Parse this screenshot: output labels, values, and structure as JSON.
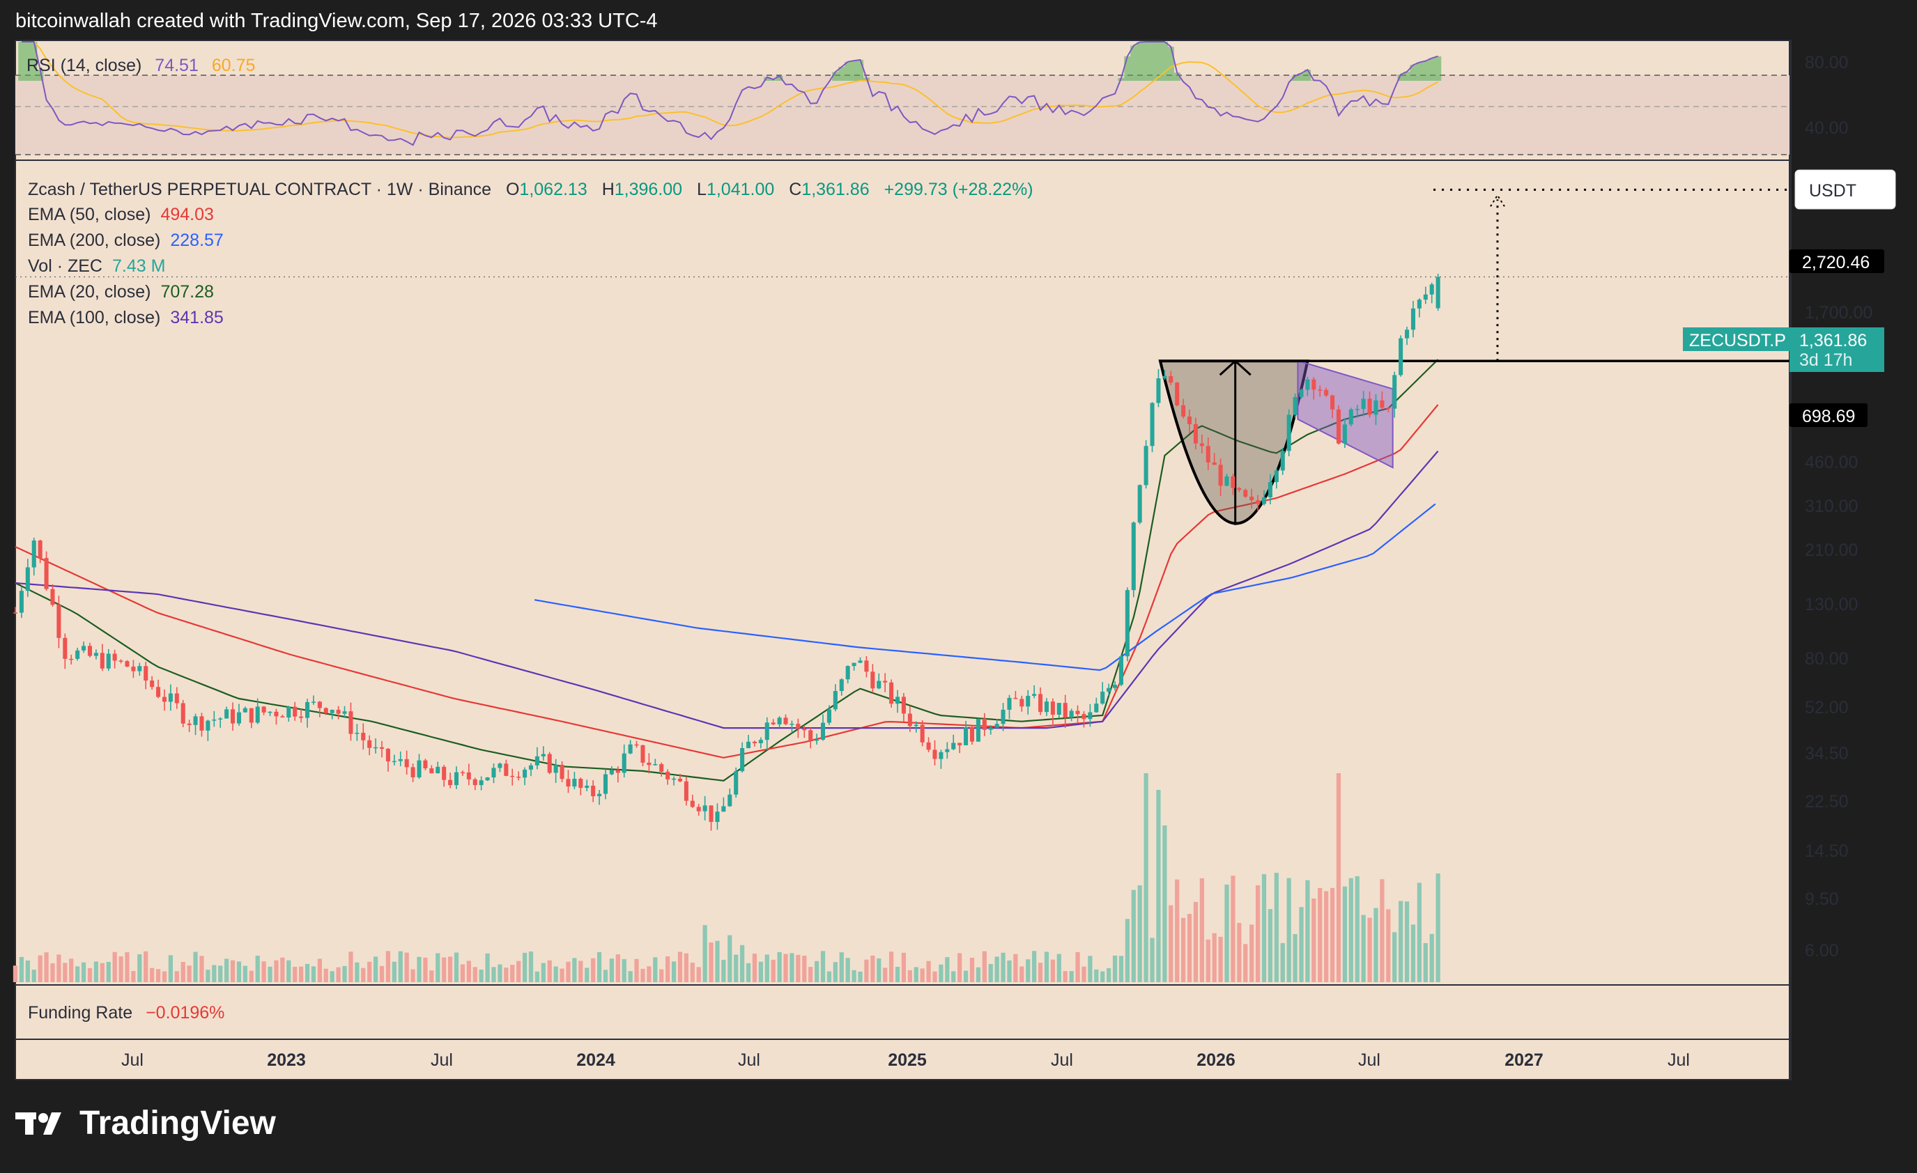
{
  "header": {
    "credit": "bitcoinwallah created with TradingView.com, Sep 17, 2026 03:33 UTC-4"
  },
  "brand": {
    "name": "TradingView",
    "icon": "tradingview-logo-icon"
  },
  "colors": {
    "panel_bg": "#f2e0cf",
    "frame": "#1e1e1e",
    "up": "#26a69a",
    "down": "#ef5350",
    "rsi": "#7e57c2",
    "rsi_ma": "#fbc02d"
  },
  "rsi_panel": {
    "name": "RSI (14, close)",
    "value": "74.51",
    "ma_value": "60.75",
    "levels": [
      "80.00",
      "40.00"
    ]
  },
  "main_panel": {
    "symbol": "Zcash / TetherUS PERPETUAL CONTRACT · 1W · Binance",
    "ohlc": {
      "o_label": "O",
      "o": "1,062.13",
      "h_label": "H",
      "h": "1,396.00",
      "l_label": "L",
      "l": "1,041.00",
      "c_label": "C",
      "c": "1,361.86",
      "chg": "+299.73 (+28.22%)"
    },
    "indicators": [
      {
        "name": "EMA (50, close)",
        "value": "494.03",
        "color": "#e53935"
      },
      {
        "name": "EMA (200, close)",
        "value": "228.57",
        "color": "#2962ff"
      },
      {
        "name": "Vol · ZEC",
        "value": "7.43 M",
        "color": "#26a69a"
      },
      {
        "name": "EMA (20, close)",
        "value": "707.28",
        "color": "#1b5e20"
      },
      {
        "name": "EMA (100, close)",
        "value": "341.85",
        "color": "#5e35b1"
      }
    ],
    "currency": "USDT",
    "price_labels": [
      "1,700.00",
      "460.00",
      "310.00",
      "210.00",
      "130.00",
      "80.00",
      "52.00",
      "34.50",
      "22.50",
      "14.50",
      "9.50",
      "6.00"
    ],
    "target_label": "2,720.46",
    "neckline_label": "698.69",
    "ticker_label": "ZECUSDT.P",
    "last_price": "1,361.86",
    "countdown": "3d 17h"
  },
  "funding_panel": {
    "name": "Funding Rate",
    "value": "−0.0196%"
  },
  "time_axis": [
    {
      "label": "Jul",
      "year": false
    },
    {
      "label": "2023",
      "year": true
    },
    {
      "label": "Jul",
      "year": false
    },
    {
      "label": "2024",
      "year": true
    },
    {
      "label": "Jul",
      "year": false
    },
    {
      "label": "2025",
      "year": true
    },
    {
      "label": "Jul",
      "year": false
    },
    {
      "label": "2026",
      "year": true
    },
    {
      "label": "Jul",
      "year": false
    },
    {
      "label": "2027",
      "year": true
    },
    {
      "label": "Jul",
      "year": false
    }
  ],
  "chart_data": {
    "type": "candlestick",
    "scale": "log",
    "interval": "1W",
    "unit": "USDT",
    "price_range": [
      5,
      3400
    ],
    "date_range": [
      "2022-04-25",
      "2027-10-15"
    ],
    "anchors": [
      {
        "date": "2022-04-25",
        "close": 95
      },
      {
        "date": "2022-05-15",
        "close": 175
      },
      {
        "date": "2022-06-20",
        "close": 70
      },
      {
        "date": "2022-09-01",
        "close": 62
      },
      {
        "date": "2022-11-10",
        "close": 40
      },
      {
        "date": "2023-04-15",
        "close": 46
      },
      {
        "date": "2023-06-10",
        "close": 30
      },
      {
        "date": "2023-09-01",
        "close": 25
      },
      {
        "date": "2023-12-15",
        "close": 29
      },
      {
        "date": "2024-02-01",
        "close": 22
      },
      {
        "date": "2024-03-20",
        "close": 32
      },
      {
        "date": "2024-05-15",
        "close": 24
      },
      {
        "date": "2024-06-25",
        "close": 18
      },
      {
        "date": "2024-07-25",
        "close": 32
      },
      {
        "date": "2024-09-01",
        "close": 44
      },
      {
        "date": "2024-10-10",
        "close": 34
      },
      {
        "date": "2024-11-25",
        "close": 66
      },
      {
        "date": "2025-01-15",
        "close": 45
      },
      {
        "date": "2025-02-25",
        "close": 32
      },
      {
        "date": "2025-04-15",
        "close": 38
      },
      {
        "date": "2025-06-01",
        "close": 48
      },
      {
        "date": "2025-08-15",
        "close": 40
      },
      {
        "date": "2025-09-20",
        "close": 60
      },
      {
        "date": "2025-10-05",
        "close": 190
      },
      {
        "date": "2025-10-25",
        "close": 480
      },
      {
        "date": "2025-11-08",
        "close": 640
      },
      {
        "date": "2025-12-01",
        "close": 440
      },
      {
        "date": "2025-12-25",
        "close": 330
      },
      {
        "date": "2026-01-25",
        "close": 245
      },
      {
        "date": "2026-02-20",
        "close": 215
      },
      {
        "date": "2026-03-20",
        "close": 340
      },
      {
        "date": "2026-04-15",
        "close": 620
      },
      {
        "date": "2026-05-01",
        "close": 600
      },
      {
        "date": "2026-05-25",
        "close": 390
      },
      {
        "date": "2026-06-20",
        "close": 500
      },
      {
        "date": "2026-07-20",
        "close": 460
      },
      {
        "date": "2026-08-05",
        "close": 900
      },
      {
        "date": "2026-08-20",
        "close": 1060
      },
      {
        "date": "2026-09-14",
        "close": 1361.86
      }
    ],
    "last_candle": {
      "open": 1062.13,
      "high": 1396.0,
      "low": 1041.0,
      "close": 1361.86
    },
    "ema": {
      "ema20": [
        [
          "2022-04-25",
          120
        ],
        [
          "2022-07-01",
          95
        ],
        [
          "2022-10-01",
          62
        ],
        [
          "2023-01-01",
          48
        ],
        [
          "2023-06-01",
          40
        ],
        [
          "2023-10-01",
          32
        ],
        [
          "2024-01-01",
          28
        ],
        [
          "2024-04-01",
          27
        ],
        [
          "2024-07-01",
          25
        ],
        [
          "2024-09-01",
          34
        ],
        [
          "2024-12-01",
          52
        ],
        [
          "2025-03-01",
          42
        ],
        [
          "2025-06-01",
          40
        ],
        [
          "2025-09-01",
          42
        ],
        [
          "2025-10-10",
          100
        ],
        [
          "2025-11-10",
          330
        ],
        [
          "2025-12-20",
          420
        ],
        [
          "2026-02-01",
          370
        ],
        [
          "2026-03-15",
          335
        ],
        [
          "2026-04-20",
          390
        ],
        [
          "2026-06-01",
          440
        ],
        [
          "2026-07-20",
          480
        ],
        [
          "2026-09-14",
          707.28
        ]
      ],
      "ema50": [
        [
          "2022-04-25",
          160
        ],
        [
          "2022-10-01",
          95
        ],
        [
          "2023-03-01",
          68
        ],
        [
          "2023-09-01",
          48
        ],
        [
          "2024-01-01",
          40
        ],
        [
          "2024-07-01",
          30
        ],
        [
          "2024-10-01",
          34
        ],
        [
          "2025-01-01",
          40
        ],
        [
          "2025-06-01",
          38
        ],
        [
          "2025-09-01",
          40
        ],
        [
          "2025-10-15",
          80
        ],
        [
          "2025-11-20",
          160
        ],
        [
          "2026-01-01",
          210
        ],
        [
          "2026-03-15",
          235
        ],
        [
          "2026-06-01",
          285
        ],
        [
          "2026-08-01",
          340
        ],
        [
          "2026-09-14",
          494.03
        ]
      ],
      "ema100": [
        [
          "2022-04-25",
          120
        ],
        [
          "2022-10-01",
          110
        ],
        [
          "2023-03-01",
          90
        ],
        [
          "2023-09-01",
          70
        ],
        [
          "2024-02-01",
          52
        ],
        [
          "2024-07-01",
          38
        ],
        [
          "2024-11-01",
          38
        ],
        [
          "2025-03-01",
          38
        ],
        [
          "2025-07-01",
          38
        ],
        [
          "2025-09-01",
          40
        ],
        [
          "2025-11-01",
          70
        ],
        [
          "2026-01-01",
          110
        ],
        [
          "2026-04-01",
          140
        ],
        [
          "2026-07-01",
          185
        ],
        [
          "2026-09-14",
          341.85
        ]
      ],
      "ema200": [
        [
          "2023-12-01",
          105
        ],
        [
          "2024-06-01",
          84
        ],
        [
          "2024-12-01",
          72
        ],
        [
          "2025-06-01",
          64
        ],
        [
          "2025-09-01",
          60
        ],
        [
          "2025-11-01",
          82
        ],
        [
          "2026-01-01",
          110
        ],
        [
          "2026-04-01",
          125
        ],
        [
          "2026-07-01",
          150
        ],
        [
          "2026-09-14",
          228.57
        ]
      ]
    },
    "rsi": {
      "period": 14,
      "last": 74.51,
      "ma_last": 60.75,
      "upper": 70,
      "lower": 30,
      "range": [
        20,
        95
      ]
    },
    "volume_spikes": [
      {
        "date": "2025-10-20",
        "value": 1.0
      },
      {
        "date": "2025-11-03",
        "value": 0.92
      },
      {
        "date": "2025-11-10",
        "value": 0.75
      },
      {
        "date": "2026-05-25",
        "value": 1.0
      }
    ],
    "pattern": {
      "name": "cup and handle",
      "neckline": 698.69,
      "target": 2720.46,
      "cup_start": "2025-11-05",
      "cup_bottom": "2026-02-01",
      "cup_end": "2026-04-20",
      "handle_end": "2026-07-25"
    },
    "funding_rate": -0.0196
  }
}
